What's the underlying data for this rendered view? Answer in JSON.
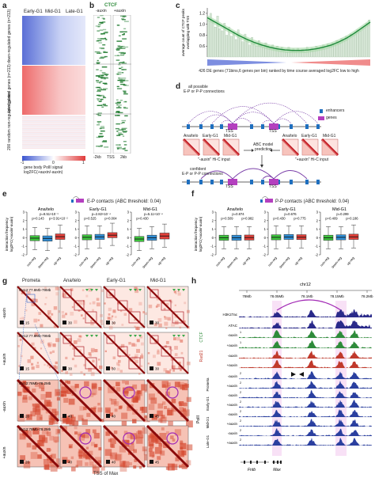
{
  "panel_labels": {
    "a": "a",
    "b": "b",
    "c": "c",
    "d": "d",
    "e": "e",
    "f": "f",
    "g": "g",
    "h": "h"
  },
  "panel_a": {
    "columns": [
      "Early-G1",
      "Mid-G1",
      "Late-G1"
    ],
    "row_labels": [
      "down-regulated genes (n=213)",
      "up-regulated genes (n=213)",
      "200 random non-regulated genes"
    ],
    "colorbar_ticks": [
      "-1",
      "0",
      "1"
    ],
    "colorbar_label_1": "gene body PolII signal",
    "colorbar_label_2": "log2FC(+auxin/-auxin)"
  },
  "panel_b": {
    "title": "CTCF",
    "columns": [
      "-auxin",
      "+auxin"
    ],
    "axis": [
      "-2kb",
      "TSS",
      "2kb"
    ]
  },
  "panel_c": {
    "ylabel_1": "average count of CTCF peaks",
    "ylabel_2": "overlapping with TSS",
    "yticks": [
      "0.6",
      "0.8",
      "1.0",
      "1.2"
    ],
    "xlabel": "426 DE genes (71bins,6 genes per bin) ranked by time course averaged log2FC low to high",
    "chart_data": {
      "type": "bar",
      "ylim": [
        0.4,
        1.3
      ],
      "values": [
        1.06,
        1.2,
        1.05,
        0.95,
        1.15,
        0.92,
        0.88,
        1.02,
        0.8,
        0.95,
        0.78,
        0.86,
        0.72,
        0.9,
        0.74,
        0.68,
        0.82,
        0.7,
        0.62,
        0.76,
        0.66,
        0.6,
        0.7,
        0.64,
        0.58,
        0.66,
        0.6,
        0.56,
        0.62,
        0.55,
        0.6,
        0.52,
        0.58,
        0.54,
        0.5,
        0.58,
        0.52,
        0.55,
        0.5,
        0.56,
        0.52,
        0.54,
        0.5,
        0.58,
        0.53,
        0.56,
        0.52,
        0.6,
        0.55,
        0.58,
        0.62,
        0.56,
        0.64,
        0.6,
        0.66,
        0.62,
        0.7,
        0.66,
        0.74,
        0.7,
        0.78,
        0.74,
        0.82,
        0.8,
        0.86,
        0.9,
        0.88,
        0.94,
        0.96,
        1.02,
        1.08
      ],
      "trend": [
        1.12,
        1.04,
        0.96,
        0.88,
        0.8,
        0.73,
        0.67,
        0.62,
        0.58,
        0.55,
        0.53,
        0.52,
        0.52,
        0.53,
        0.55,
        0.58,
        0.62,
        0.68,
        0.75,
        0.84,
        0.94,
        1.04
      ]
    }
  },
  "panel_d": {
    "title": "all possible",
    "title2": "E-P or P-P connections",
    "legend_enhancers": "enhancers",
    "legend_genes": "genes",
    "tss": "TSS",
    "ana_telo": "Ana/telo",
    "early": "Early-G1",
    "mid": "Mid-G1",
    "abc_1": "ABC model",
    "abc_2": "prediction",
    "minus_input": "\"-auxin\" Hi-C input",
    "plus_input": "\"+auxin\" Hi-C input",
    "confident_1": "confident",
    "confident_2": "E-P or P-P connections",
    "colors": {
      "enhancer": "#1f6fbf",
      "gene": "#b43fbf",
      "arc": "#7a3fa8"
    }
  },
  "panel_e": {
    "title": "E-P contacts (ABC  threshold: 0.04)",
    "ylabel": "interaction frequency",
    "ylabel2": "log2FC(+auxin/-auxin)",
    "categories": [
      "non-reg",
      "down-reg",
      "up-reg"
    ],
    "yticks": [
      "3",
      "2",
      "1",
      "0",
      "-1",
      "-2"
    ],
    "groups": [
      {
        "name": "Ana/telo",
        "p_top": "p=8.51×10⁻¹",
        "p_left": "p=0.143",
        "p_right": "p=3.91×10⁻²",
        "boxes": [
          {
            "q1": -0.35,
            "median": -0.05,
            "q3": 0.25,
            "lo": -1.4,
            "hi": 1.2
          },
          {
            "q1": -0.4,
            "median": -0.08,
            "q3": 0.22,
            "lo": -1.5,
            "hi": 1.1
          },
          {
            "q1": -0.2,
            "median": 0.12,
            "q3": 0.45,
            "lo": -1.2,
            "hi": 1.5
          }
        ]
      },
      {
        "name": "Early-G1",
        "p_top": "p=2.82×10⁻⁴",
        "p_left": "p=0.525",
        "p_right": "p=0.004",
        "boxes": [
          {
            "q1": -0.25,
            "median": 0.05,
            "q3": 0.35,
            "lo": -1.3,
            "hi": 1.4
          },
          {
            "q1": -0.2,
            "median": 0.1,
            "q3": 0.4,
            "lo": -1.2,
            "hi": 1.4
          },
          {
            "q1": 0.0,
            "median": 0.3,
            "q3": 0.6,
            "lo": -0.9,
            "hi": 1.7
          }
        ]
      },
      {
        "name": "Mid-G1",
        "p_top": "p=5.11×10⁻⁴",
        "p_left": "p=0.430",
        "p_right": "",
        "boxes": [
          {
            "q1": -0.45,
            "median": -0.15,
            "q3": 0.15,
            "lo": -1.5,
            "hi": 1.1
          },
          {
            "q1": -0.3,
            "median": 0.0,
            "q3": 0.3,
            "lo": -1.3,
            "hi": 1.3
          },
          {
            "q1": -0.15,
            "median": 0.2,
            "q3": 0.55,
            "lo": -1.1,
            "hi": 1.6
          }
        ]
      }
    ]
  },
  "panel_f": {
    "title": "P-P contacts (ABC  threshold: 0.04)",
    "ylabel": "interaction frequency",
    "ylabel2": "log2FC(+auxin/-auxin)",
    "categories": [
      "non-reg",
      "down-reg",
      "up-reg"
    ],
    "yticks": [
      "3",
      "2",
      "1",
      "0",
      "-1",
      "-2"
    ],
    "groups": [
      {
        "name": "Ana/telo",
        "p_top": "p=0.874",
        "p_left": "p=0.509",
        "p_right": "p=0.982",
        "boxes": [
          {
            "q1": -0.3,
            "median": 0.0,
            "q3": 0.3,
            "lo": -1.3,
            "hi": 1.3
          },
          {
            "q1": -0.3,
            "median": 0.0,
            "q3": 0.3,
            "lo": -1.3,
            "hi": 1.3
          },
          {
            "q1": -0.28,
            "median": 0.02,
            "q3": 0.32,
            "lo": -1.3,
            "hi": 1.3
          }
        ]
      },
      {
        "name": "Early-G1",
        "p_top": "p=0.676",
        "p_left": "p=0.430",
        "p_right": "p=0.775",
        "boxes": [
          {
            "q1": -0.25,
            "median": 0.05,
            "q3": 0.35,
            "lo": -1.3,
            "hi": 1.4
          },
          {
            "q1": -0.2,
            "median": 0.08,
            "q3": 0.38,
            "lo": -1.2,
            "hi": 1.4
          },
          {
            "q1": -0.22,
            "median": 0.06,
            "q3": 0.36,
            "lo": -1.2,
            "hi": 1.4
          }
        ]
      },
      {
        "name": "Mid-G1",
        "p_top": "p=0.299",
        "p_left": "p=0.409",
        "p_right": "p=0.186",
        "boxes": [
          {
            "q1": -0.3,
            "median": 0.0,
            "q3": 0.3,
            "lo": -1.3,
            "hi": 1.3
          },
          {
            "q1": -0.25,
            "median": 0.05,
            "q3": 0.35,
            "lo": -1.3,
            "hi": 1.3
          },
          {
            "q1": -0.2,
            "median": 0.1,
            "q3": 0.42,
            "lo": -1.2,
            "hi": 1.5
          }
        ]
      }
    ]
  },
  "panel_g": {
    "columns": [
      "Prometa",
      "Ana/telo",
      "Early-G1",
      "Mid-G1"
    ],
    "row_labels": [
      "-auxin",
      "+auxin",
      "-auxin",
      "+auxin"
    ],
    "coords": [
      "chr12:77.8Mb-79Mb",
      "chr12:77.8Mb-79Mb",
      "chr12:78Mb-78.2Mb",
      "chr12:78Mb-78.2Mb"
    ],
    "scales_row1": [
      "15",
      "30",
      "30",
      "30"
    ],
    "scales_row2": [
      "15",
      "30",
      "30",
      "30"
    ],
    "scales_row3": [
      "20",
      "40",
      "40",
      "45"
    ],
    "scales_row4": [
      "20",
      "40",
      "40",
      "45"
    ],
    "xlabel": "TSS of Max"
  },
  "panel_h": {
    "chrom": "chr12",
    "coords": [
      "78Mb",
      "78.05Mb",
      "78.1Mb",
      "78.15Mb",
      "78.2Mb"
    ],
    "tracks": [
      {
        "label": "H3K27ac",
        "scale": "",
        "color": "#2a2a8a"
      },
      {
        "label": "ATAC",
        "scale": "",
        "color": "#2a2a8a"
      },
      {
        "label": "-auxin",
        "scale": "1",
        "color": "#2e8b3a"
      },
      {
        "label": "+auxin",
        "scale": "1",
        "color": "#2e8b3a"
      },
      {
        "label": "-auxin",
        "scale": "",
        "color": "#c0392b"
      },
      {
        "label": "+auxin",
        "scale": "",
        "color": "#c0392b"
      },
      {
        "label": "-auxin",
        "scale": "2",
        "color": "#2a3f9f"
      },
      {
        "label": "+auxin",
        "scale": "2",
        "color": "#2a3f9f"
      },
      {
        "label": "-auxin",
        "scale": "2",
        "color": "#2a3f9f"
      },
      {
        "label": "+auxin",
        "scale": "2",
        "color": "#2a3f9f"
      },
      {
        "label": "-auxin",
        "scale": "2",
        "color": "#2a3f9f"
      },
      {
        "label": "+auxin",
        "scale": "2",
        "color": "#2a3f9f"
      },
      {
        "label": "-auxin",
        "scale": "2",
        "color": "#2a3f9f"
      },
      {
        "label": "+auxin",
        "scale": "2",
        "color": "#2a3f9f"
      }
    ],
    "group_ctcf": "CTCF",
    "group_rad21": "Rad21",
    "stages": [
      "Prometa",
      "Early-G1",
      "Mid-G1",
      "Late-G1"
    ],
    "polii": "PolII",
    "genes": [
      "Fntb",
      "Max"
    ]
  }
}
